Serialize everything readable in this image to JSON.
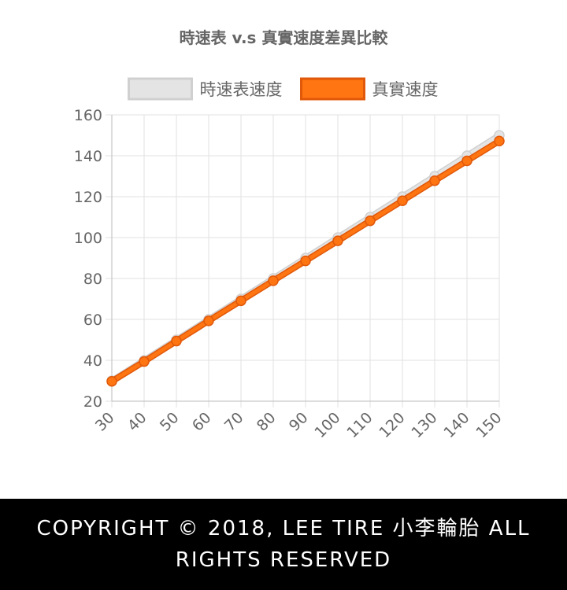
{
  "chart_data": {
    "type": "line",
    "title": "時速表 v.s 真實速度差異比較",
    "xlabel": "",
    "ylabel": "",
    "x": [
      30,
      40,
      50,
      60,
      70,
      80,
      90,
      100,
      110,
      120,
      130,
      140,
      150
    ],
    "xlim": [
      30,
      150
    ],
    "ylim": [
      20,
      160
    ],
    "yticks": [
      20,
      40,
      60,
      80,
      100,
      120,
      140,
      160
    ],
    "grid": true,
    "legend_position": "top",
    "series": [
      {
        "name": "時速表速度",
        "values": [
          30,
          40,
          50,
          60,
          70,
          80,
          90,
          100,
          110,
          120,
          130,
          140,
          150
        ],
        "color": "#e4e4e4",
        "border_color": "#d0d0d0"
      },
      {
        "name": "真實速度",
        "values": [
          29.7,
          39.4,
          49.4,
          59.3,
          69.1,
          78.9,
          88.6,
          98.4,
          108.2,
          118.0,
          127.8,
          137.5,
          147.2
        ],
        "color": "#ff7512",
        "border_color": "#e0580a"
      }
    ]
  },
  "footer": {
    "copyright": "COPYRIGHT © 2018, LEE TIRE 小李輪胎 ALL RIGHTS RESERVED"
  }
}
